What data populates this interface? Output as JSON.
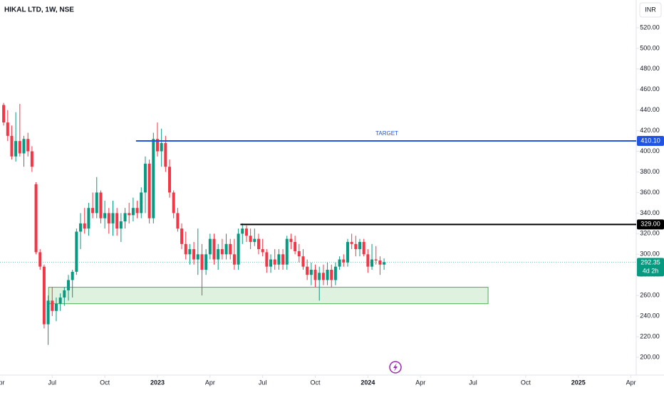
{
  "chart_data": {
    "type": "candlestick",
    "title": "HIKAL LTD, 1W, NSE",
    "currency": "INR",
    "up_color": "#089981",
    "down_color": "#f23645",
    "xlim": [
      -38.9,
      118.3
    ],
    "xticks": [
      {
        "value": -39,
        "label": "Apr"
      },
      {
        "value": -26,
        "label": "Jul"
      },
      {
        "value": -13,
        "label": "Oct"
      },
      {
        "value": 0,
        "label": "2023"
      },
      {
        "value": 13,
        "label": "Apr"
      },
      {
        "value": 26,
        "label": "Jul"
      },
      {
        "value": 39,
        "label": "Oct"
      },
      {
        "value": 52,
        "label": "2024"
      },
      {
        "value": 65,
        "label": "Apr"
      },
      {
        "value": 78,
        "label": "Jul"
      },
      {
        "value": 91,
        "label": "Oct"
      },
      {
        "value": 104,
        "label": "2025"
      },
      {
        "value": 117,
        "label": "Apr"
      }
    ],
    "ylim": [
      182.7,
      546.95
    ],
    "yticks": [
      {
        "value": 200,
        "label": "200.00"
      },
      {
        "value": 220,
        "label": "220.00"
      },
      {
        "value": 240,
        "label": "240.00"
      },
      {
        "value": 260,
        "label": "260.00"
      },
      {
        "value": 280,
        "label": "280.00"
      },
      {
        "value": 300,
        "label": "300.00"
      },
      {
        "value": 320,
        "label": "320.00"
      },
      {
        "value": 340,
        "label": "340.00"
      },
      {
        "value": 360,
        "label": "360.00"
      },
      {
        "value": 380,
        "label": "380.00"
      },
      {
        "value": 400,
        "label": "400.00"
      },
      {
        "value": 420,
        "label": "420.00"
      },
      {
        "value": 440,
        "label": "440.00"
      },
      {
        "value": 460,
        "label": "460.00"
      },
      {
        "value": 480,
        "label": "480.00"
      },
      {
        "value": 500,
        "label": "500.00"
      },
      {
        "value": 520,
        "label": "520.00"
      }
    ],
    "x": [
      -38,
      -37,
      -36,
      -35,
      -34,
      -33,
      -32,
      -31,
      -30,
      -29,
      -28,
      -27,
      -26,
      -25,
      -24,
      -23,
      -22,
      -21,
      -20,
      -19,
      -18,
      -17,
      -16,
      -15,
      -14,
      -13,
      -12,
      -11,
      -10,
      -9,
      -8,
      -7,
      -6,
      -5,
      -4,
      -3,
      -2,
      -1,
      0,
      1,
      2,
      3,
      4,
      5,
      6,
      7,
      8,
      9,
      10,
      11,
      12,
      13,
      14,
      15,
      16,
      17,
      18,
      19,
      20,
      21,
      22,
      23,
      24,
      25,
      26,
      27,
      28,
      29,
      30,
      31,
      32,
      33,
      34,
      35,
      36,
      37,
      38,
      39,
      40,
      41,
      42,
      43,
      44,
      45,
      46,
      47,
      48,
      49,
      50,
      51,
      52,
      53,
      54,
      55,
      56
    ],
    "open": [
      445,
      428,
      415,
      395,
      410,
      398,
      412,
      400,
      368,
      302,
      288,
      232,
      255,
      245,
      252,
      258,
      265,
      275,
      283,
      322,
      330,
      325,
      345,
      340,
      360,
      335,
      340,
      330,
      340,
      325,
      332,
      340,
      338,
      345,
      340,
      360,
      388,
      335,
      412,
      400,
      408,
      385,
      360,
      340,
      325,
      310,
      300,
      305,
      295,
      300,
      285,
      300,
      315,
      295,
      305,
      300,
      310,
      300,
      290,
      320,
      325,
      318,
      312,
      315,
      305,
      302,
      288,
      295,
      290,
      300,
      290,
      315,
      312,
      303,
      298,
      288,
      280,
      285,
      275,
      282,
      275,
      285,
      275,
      288,
      295,
      292,
      312,
      310,
      305,
      312,
      300,
      288,
      295,
      294,
      290
    ],
    "high": [
      447,
      440,
      425,
      438,
      446,
      415,
      418,
      405,
      370,
      305,
      290,
      260,
      268,
      258,
      262,
      268,
      280,
      285,
      325,
      340,
      345,
      350,
      360,
      375,
      362,
      352,
      345,
      352,
      345,
      340,
      345,
      350,
      355,
      352,
      365,
      395,
      392,
      418,
      428,
      422,
      415,
      392,
      362,
      345,
      330,
      322,
      310,
      312,
      325,
      310,
      305,
      320,
      320,
      310,
      315,
      320,
      315,
      315,
      325,
      330,
      328,
      325,
      325,
      320,
      315,
      305,
      300,
      305,
      305,
      305,
      318,
      320,
      318,
      310,
      305,
      295,
      292,
      290,
      288,
      290,
      292,
      290,
      292,
      298,
      300,
      315,
      320,
      318,
      315,
      315,
      305,
      310,
      308,
      298,
      296
    ],
    "low": [
      425,
      410,
      392,
      390,
      395,
      385,
      395,
      380,
      300,
      285,
      228,
      212,
      240,
      235,
      245,
      250,
      255,
      258,
      280,
      305,
      320,
      318,
      335,
      335,
      330,
      325,
      320,
      318,
      318,
      312,
      325,
      330,
      332,
      335,
      335,
      340,
      330,
      330,
      395,
      385,
      380,
      355,
      335,
      322,
      305,
      295,
      290,
      290,
      280,
      260,
      280,
      295,
      290,
      285,
      295,
      295,
      295,
      285,
      285,
      310,
      312,
      305,
      308,
      300,
      298,
      282,
      282,
      285,
      285,
      285,
      285,
      305,
      300,
      292,
      285,
      275,
      270,
      268,
      255,
      270,
      270,
      268,
      270,
      285,
      288,
      288,
      305,
      298,
      298,
      298,
      282,
      285,
      290,
      280,
      285
    ],
    "close": [
      428,
      415,
      395,
      410,
      398,
      412,
      400,
      385,
      302,
      288,
      232,
      255,
      245,
      252,
      258,
      265,
      275,
      283,
      322,
      330,
      325,
      345,
      340,
      360,
      335,
      340,
      330,
      340,
      325,
      332,
      340,
      338,
      345,
      340,
      360,
      388,
      335,
      412,
      400,
      408,
      385,
      360,
      340,
      325,
      310,
      300,
      305,
      295,
      300,
      285,
      300,
      315,
      295,
      305,
      300,
      310,
      300,
      290,
      320,
      325,
      318,
      312,
      315,
      305,
      302,
      288,
      295,
      290,
      300,
      290,
      315,
      312,
      303,
      298,
      288,
      280,
      285,
      275,
      282,
      275,
      285,
      275,
      288,
      295,
      292,
      312,
      310,
      305,
      312,
      300,
      288,
      295,
      294,
      290,
      292.35
    ],
    "hlines": [
      {
        "value": 410.1,
        "label": "410.10",
        "start": -5.3,
        "color": "#1e53e5",
        "text": "TARGET"
      },
      {
        "value": 329,
        "label": "329.00",
        "start": 20.5,
        "color": "#000000"
      }
    ],
    "zone": {
      "low": 252,
      "high": 268,
      "start": -26.9,
      "end": 81.7,
      "color": "#4caf50"
    },
    "last_price": {
      "value": 292.35,
      "label": "292.35",
      "countdown": "4d 2h",
      "color": "#089981"
    }
  }
}
